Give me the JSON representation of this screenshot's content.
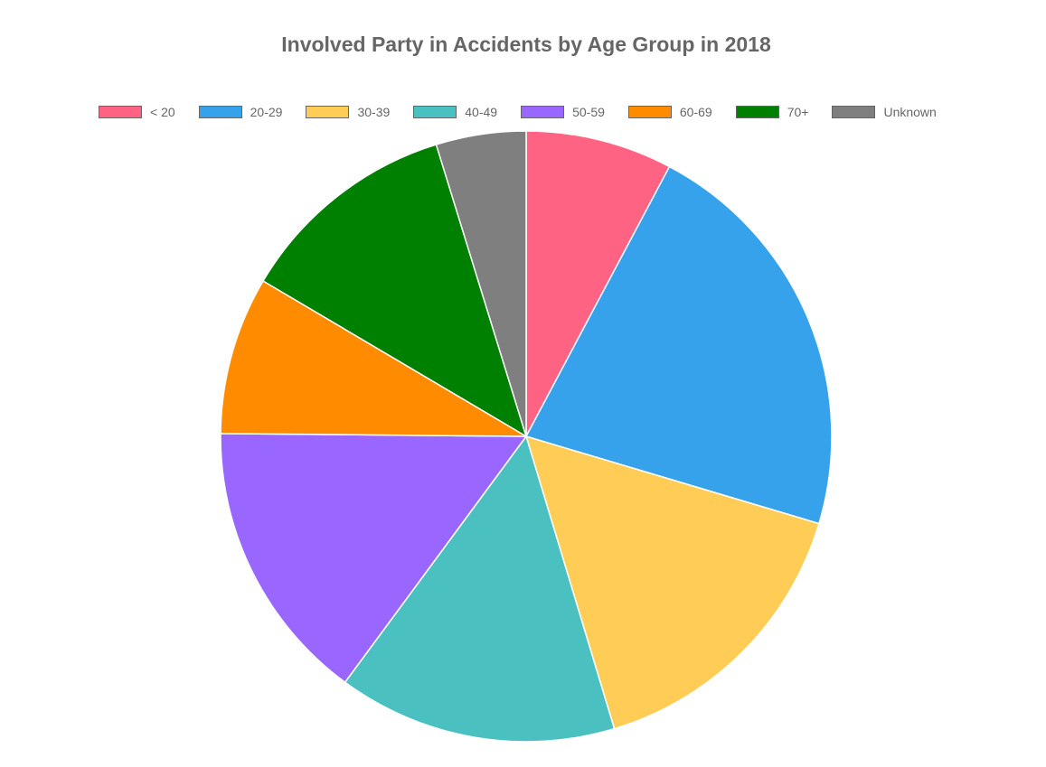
{
  "chart_data": {
    "type": "pie",
    "title": "Involved Party in Accidents by Age Group in 2018",
    "legend_position": "top",
    "categories": [
      "< 20",
      "20-29",
      "30-39",
      "40-49",
      "50-59",
      "60-69",
      "70+",
      "Unknown"
    ],
    "values": [
      8.0,
      22.5,
      16.2,
      15.2,
      15.5,
      8.6,
      12.1,
      4.9
    ],
    "colors": [
      "#ff6384",
      "#36a2eb",
      "#ffcd56",
      "#4bc0c0",
      "#9966ff",
      "#ff8c00",
      "#008000",
      "#7f7f7f"
    ]
  }
}
